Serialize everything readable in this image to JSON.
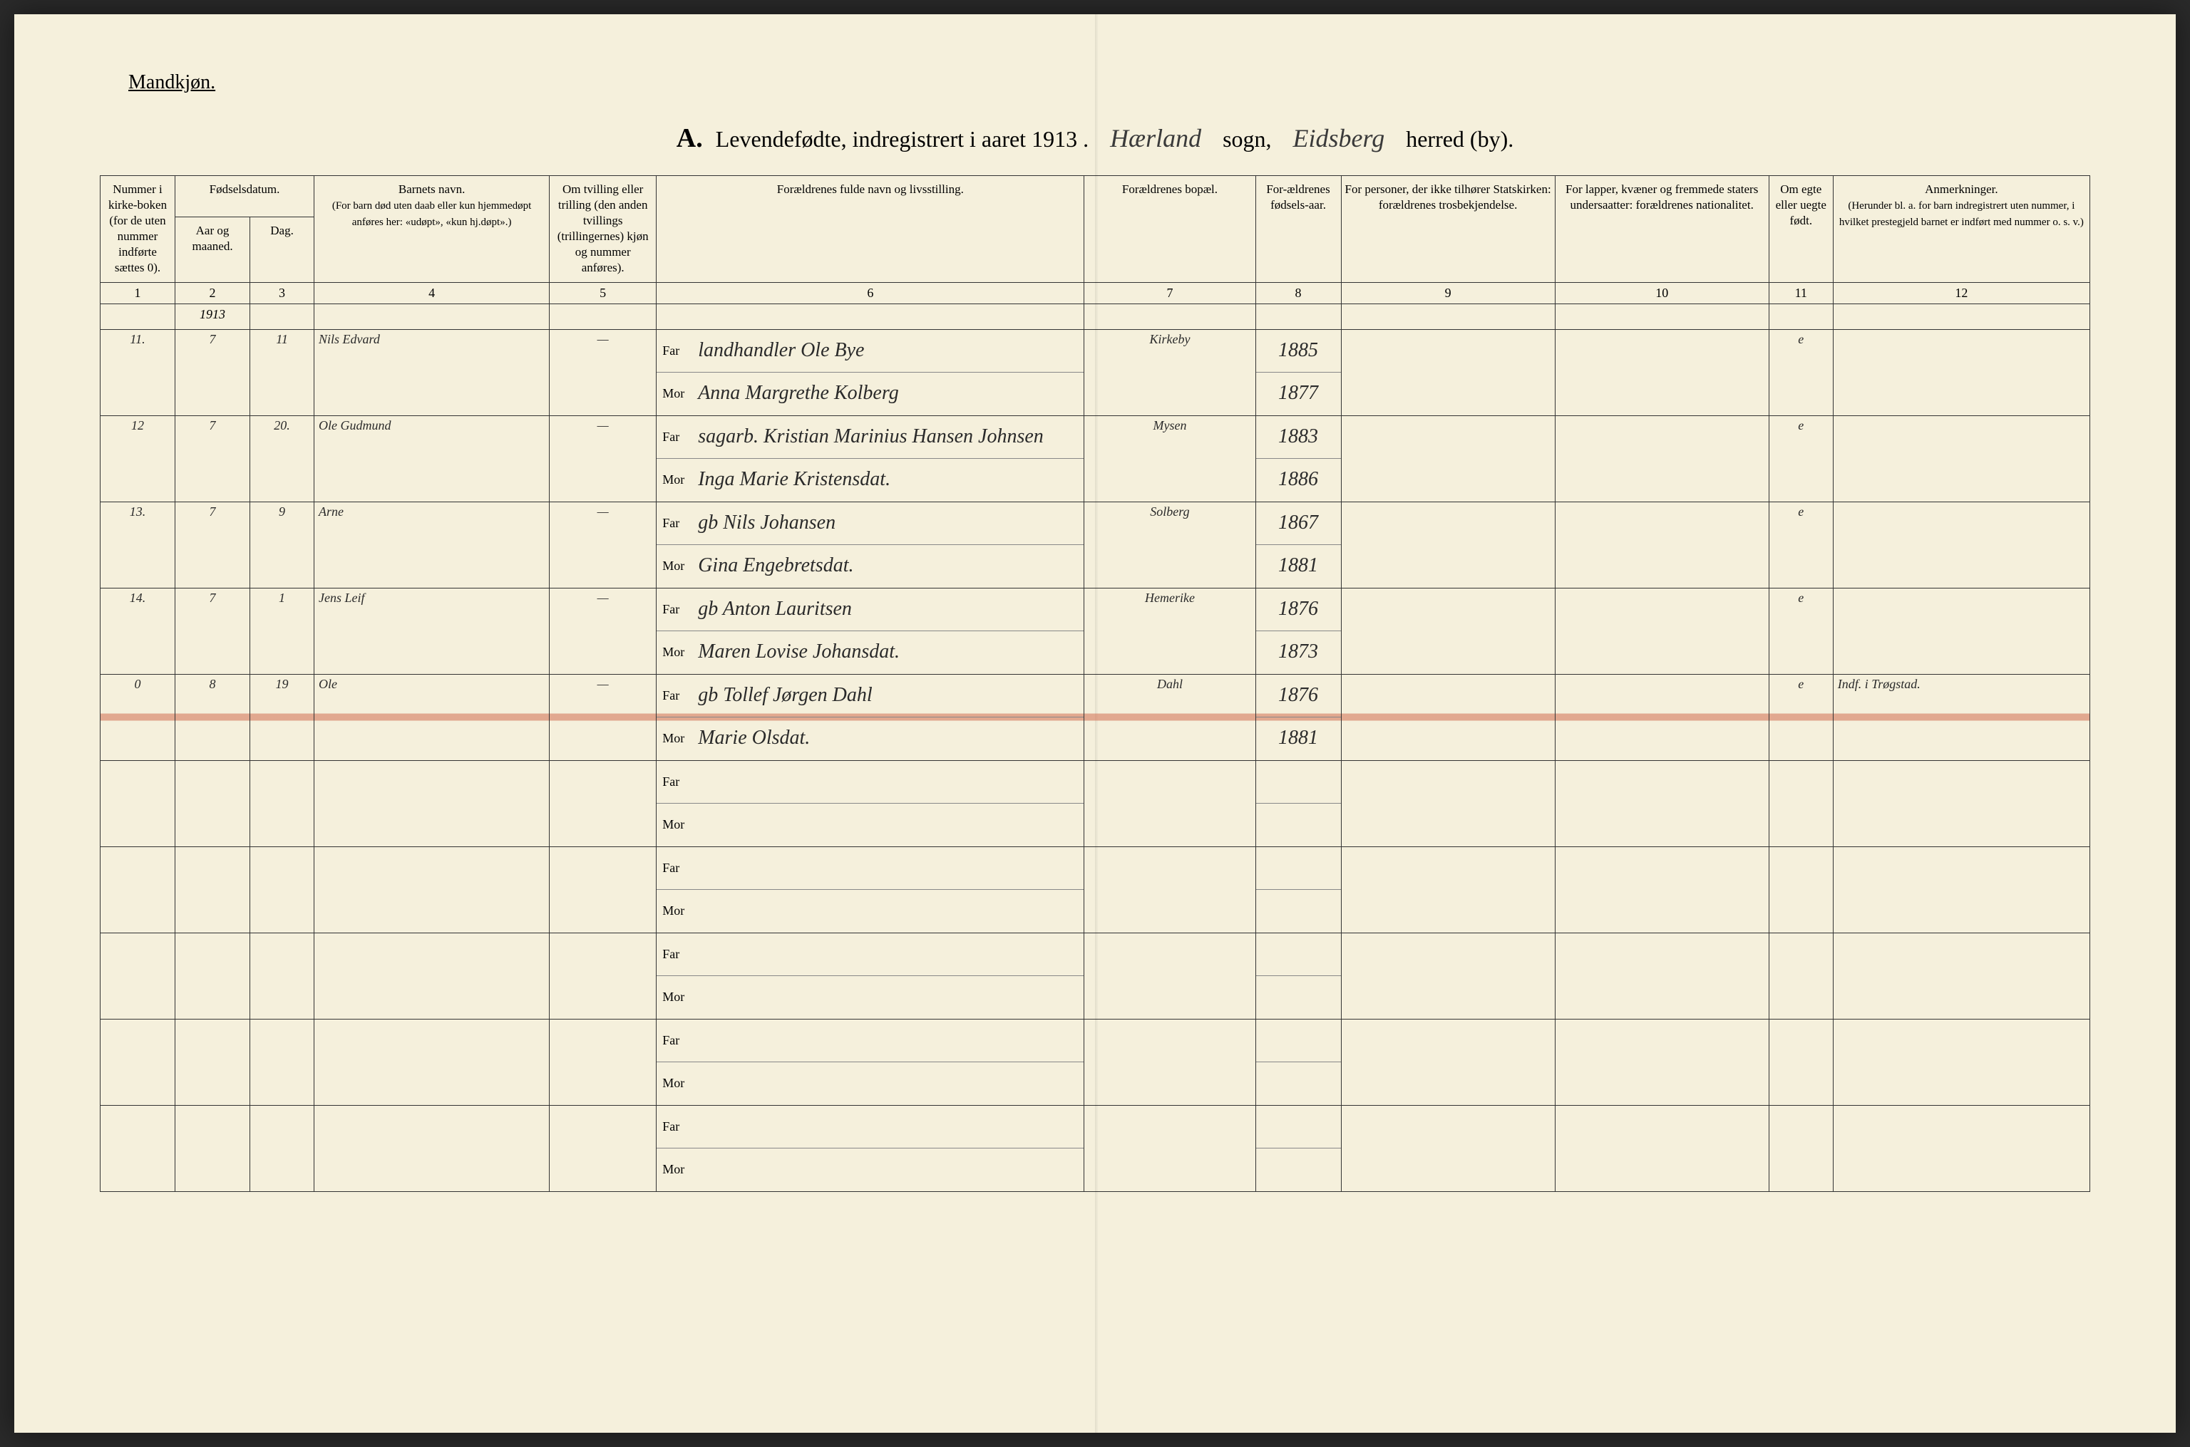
{
  "header": {
    "gender": "Mandkjøn.",
    "title_letter": "A.",
    "title_text": "Levendefødte, indregistrert i aaret 191",
    "year_suffix": "3 .",
    "sogn_hand": "Hærland",
    "sogn_label": "sogn,",
    "herred_hand": "Eidsberg",
    "herred_label": "herred (by)."
  },
  "columns": {
    "c1": "Nummer i kirke-boken (for de uten nummer indførte sættes 0).",
    "c2_group": "Fødselsdatum.",
    "c2a": "Aar og maaned.",
    "c2b": "Dag.",
    "c4": "Barnets navn.",
    "c4_sub": "(For barn død uten daab eller kun hjemmedøpt anføres her: «udøpt», «kun hj.døpt».)",
    "c5": "Om tvilling eller trilling (den anden tvillings (trillingernes) kjøn og nummer anføres).",
    "c6": "Forældrenes fulde navn og livsstilling.",
    "c7": "Forældrenes bopæl.",
    "c8": "For-ældrenes fødsels-aar.",
    "c9": "For personer, der ikke tilhører Statskirken: forældrenes trosbekjendelse.",
    "c10": "For lapper, kvæner og fremmede staters undersaatter: forældrenes nationalitet.",
    "c11": "Om egte eller uegte født.",
    "c12": "Anmerkninger.",
    "c12_sub": "(Herunder bl. a. for barn indregistrert uten nummer, i hvilket prestegjeld barnet er indført med nummer o. s. v.)"
  },
  "col_numbers": [
    "1",
    "2",
    "3",
    "4",
    "5",
    "6",
    "7",
    "8",
    "9",
    "10",
    "11",
    "12"
  ],
  "parent_labels": {
    "far": "Far",
    "mor": "Mor"
  },
  "year_row": "1913",
  "rows": [
    {
      "num": "11.",
      "month": "7",
      "day": "11",
      "name": "Nils Edvard",
      "tvilling": "—",
      "far": "landhandler Ole Bye",
      "mor": "Anna Margrethe Kolberg",
      "residence": "Kirkeby",
      "far_year": "1885",
      "mor_year": "1877",
      "egte": "e",
      "remark": "",
      "struck": false
    },
    {
      "num": "12",
      "month": "7",
      "day": "20.",
      "name": "Ole Gudmund",
      "tvilling": "—",
      "far": "sagarb. Kristian Marinius Hansen Johnsen",
      "mor": "Inga Marie Kristensdat.",
      "residence": "Mysen",
      "far_year": "1883",
      "mor_year": "1886",
      "egte": "e",
      "remark": "",
      "struck": false
    },
    {
      "num": "13.",
      "month": "7",
      "day": "9",
      "name": "Arne",
      "tvilling": "—",
      "far": "gb Nils Johansen",
      "mor": "Gina Engebretsdat.",
      "residence": "Solberg",
      "far_year": "1867",
      "mor_year": "1881",
      "egte": "e",
      "remark": "",
      "struck": false
    },
    {
      "num": "14.",
      "month": "7",
      "day": "1",
      "name": "Jens Leif",
      "tvilling": "—",
      "far": "gb Anton Lauritsen",
      "mor": "Maren Lovise Johansdat.",
      "residence": "Hemerike",
      "far_year": "1876",
      "mor_year": "1873",
      "egte": "e",
      "remark": "",
      "struck": false
    },
    {
      "num": "0",
      "month": "8",
      "day": "19",
      "name": "Ole",
      "tvilling": "—",
      "far": "gb Tollef Jørgen Dahl",
      "mor": "Marie Olsdat.",
      "residence": "Dahl",
      "far_year": "1876",
      "mor_year": "1881",
      "egte": "e",
      "remark": "Indf. i Trøgstad.",
      "struck": true
    },
    {
      "num": "",
      "month": "",
      "day": "",
      "name": "",
      "tvilling": "",
      "far": "",
      "mor": "",
      "residence": "",
      "far_year": "",
      "mor_year": "",
      "egte": "",
      "remark": "",
      "struck": false
    },
    {
      "num": "",
      "month": "",
      "day": "",
      "name": "",
      "tvilling": "",
      "far": "",
      "mor": "",
      "residence": "",
      "far_year": "",
      "mor_year": "",
      "egte": "",
      "remark": "",
      "struck": false
    },
    {
      "num": "",
      "month": "",
      "day": "",
      "name": "",
      "tvilling": "",
      "far": "",
      "mor": "",
      "residence": "",
      "far_year": "",
      "mor_year": "",
      "egte": "",
      "remark": "",
      "struck": false
    },
    {
      "num": "",
      "month": "",
      "day": "",
      "name": "",
      "tvilling": "",
      "far": "",
      "mor": "",
      "residence": "",
      "far_year": "",
      "mor_year": "",
      "egte": "",
      "remark": "",
      "struck": false
    },
    {
      "num": "",
      "month": "",
      "day": "",
      "name": "",
      "tvilling": "",
      "far": "",
      "mor": "",
      "residence": "",
      "far_year": "",
      "mor_year": "",
      "egte": "",
      "remark": "",
      "struck": false
    }
  ],
  "styling": {
    "paper_color": "#f5f0dc",
    "ink_color": "#2a2a2a",
    "border_color": "#333333",
    "strike_color": "rgba(210,110,80,0.55)",
    "handwriting_font": "Brush Script MT",
    "printed_font": "Georgia",
    "title_fontsize": 32,
    "header_fontsize": 17,
    "handwriting_fontsize": 34
  }
}
